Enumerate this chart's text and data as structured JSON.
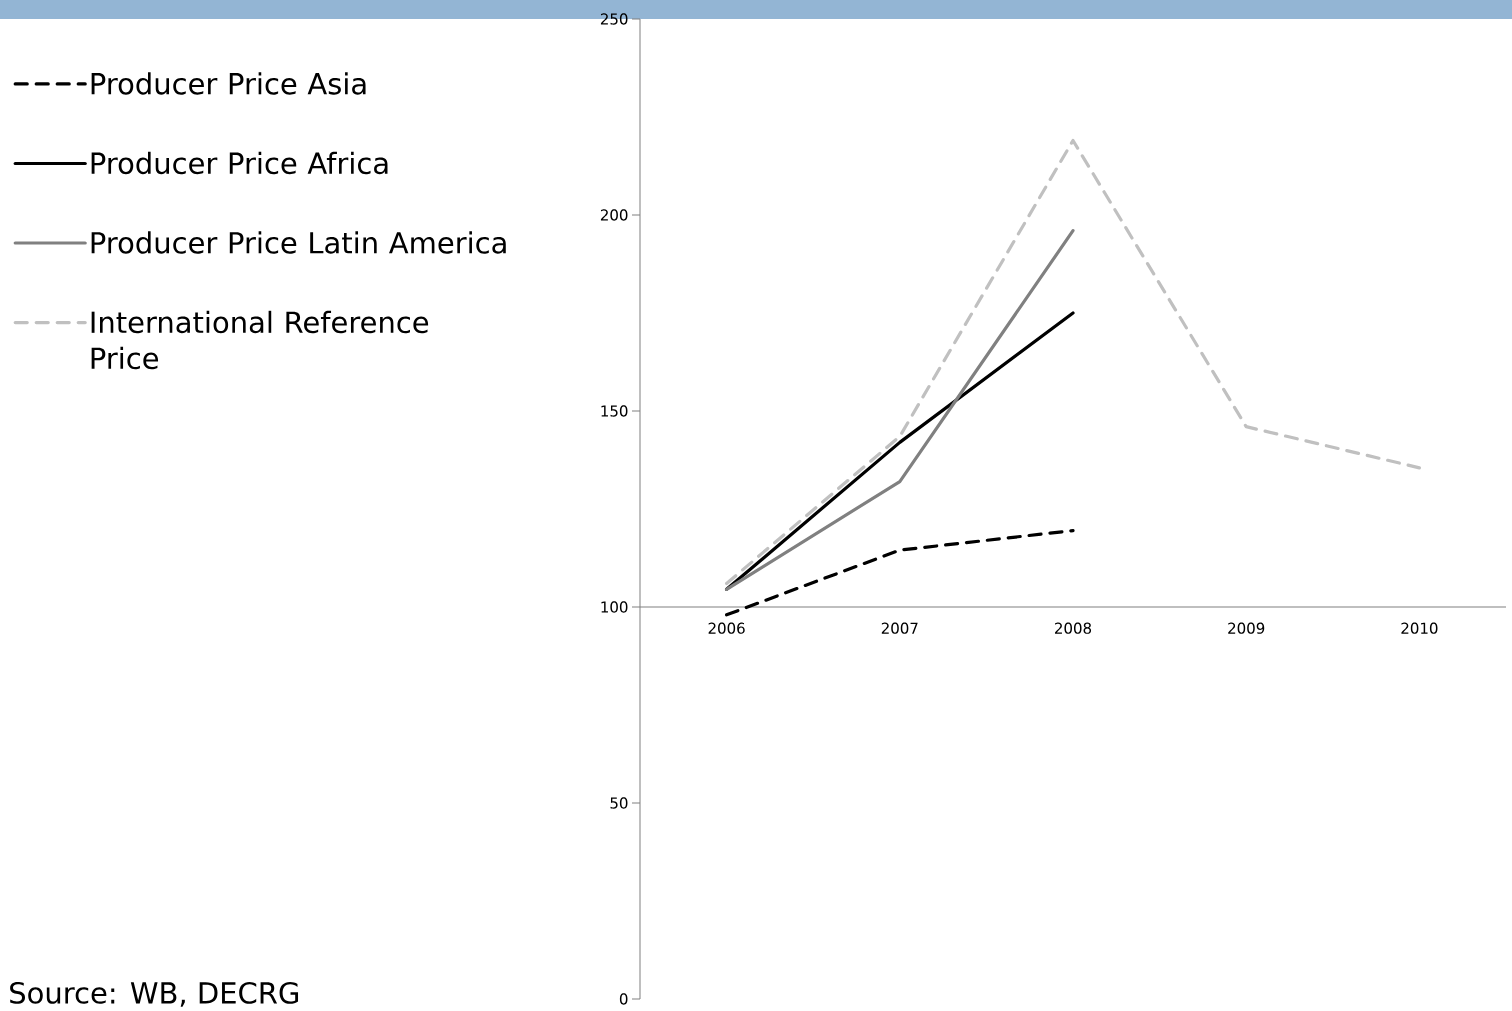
{
  "chart_data": {
    "type": "line",
    "categories": [
      "2006",
      "2007",
      "2008",
      "2009",
      "2010"
    ],
    "series": [
      {
        "name": "Producer Price Asia",
        "color": "#000000",
        "line_style": "dashed",
        "values": [
          98,
          114.5,
          119.5,
          null,
          null
        ]
      },
      {
        "name": "Producer Price Africa",
        "color": "#000000",
        "line_style": "solid",
        "values": [
          104.5,
          142,
          175,
          null,
          null
        ]
      },
      {
        "name": "Producer Price Latin America",
        "color": "#808080",
        "line_style": "solid",
        "values": [
          104.5,
          132,
          196,
          null,
          null
        ]
      },
      {
        "name": "International Reference Price",
        "color": "#c0c0c0",
        "line_style": "dashed",
        "values": [
          106,
          143.5,
          219,
          146,
          135.5
        ]
      }
    ],
    "ylim": [
      0,
      250
    ],
    "yticks": [
      0,
      50,
      100,
      150,
      200,
      250
    ],
    "grid": false,
    "legend": "left",
    "annotations": [
      "Source: WB, DECRG"
    ]
  }
}
